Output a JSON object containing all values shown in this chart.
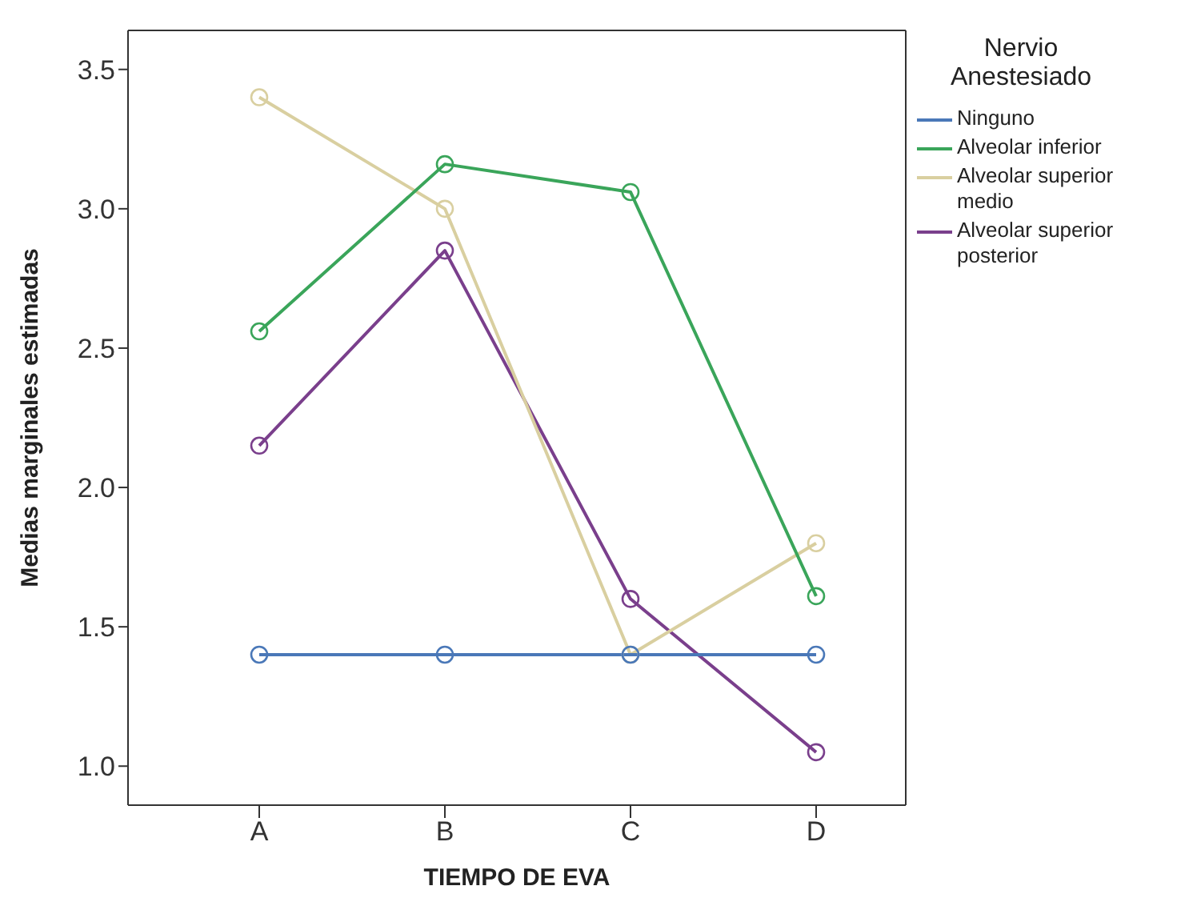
{
  "chart_data": {
    "type": "line",
    "xlabel": "TIEMPO DE EVA",
    "ylabel": "Medias marginales estimadas",
    "legend_title": "Nervio Anestesiado",
    "legend": "right",
    "marker": "circle",
    "grid": false,
    "categories": [
      "A",
      "B",
      "C",
      "D"
    ],
    "ylim": [
      0.86,
      3.64
    ],
    "yticks": [
      {
        "value": 1,
        "label": "1.0"
      },
      {
        "value": 1.5,
        "label": "1.5"
      },
      {
        "value": 2,
        "label": "2.0"
      },
      {
        "value": 2.5,
        "label": "2.5"
      },
      {
        "value": 3,
        "label": "3.0"
      },
      {
        "value": 3.5,
        "label": "3.5"
      }
    ],
    "series": [
      {
        "name": "Ninguno",
        "color": "#4a78b8",
        "values": [
          1.4,
          1.4,
          1.4,
          1.4
        ]
      },
      {
        "name": "Alveolar inferior",
        "color": "#3aa55a",
        "values": [
          2.56,
          3.16,
          3.06,
          1.61
        ]
      },
      {
        "name": "Alveolar superior medio",
        "color": "#d9cfa0",
        "values": [
          3.4,
          3.0,
          1.4,
          1.8
        ]
      },
      {
        "name": "Alveolar superior posterior",
        "color": "#7a3f8c",
        "values": [
          2.15,
          2.85,
          1.6,
          1.05
        ]
      }
    ]
  }
}
